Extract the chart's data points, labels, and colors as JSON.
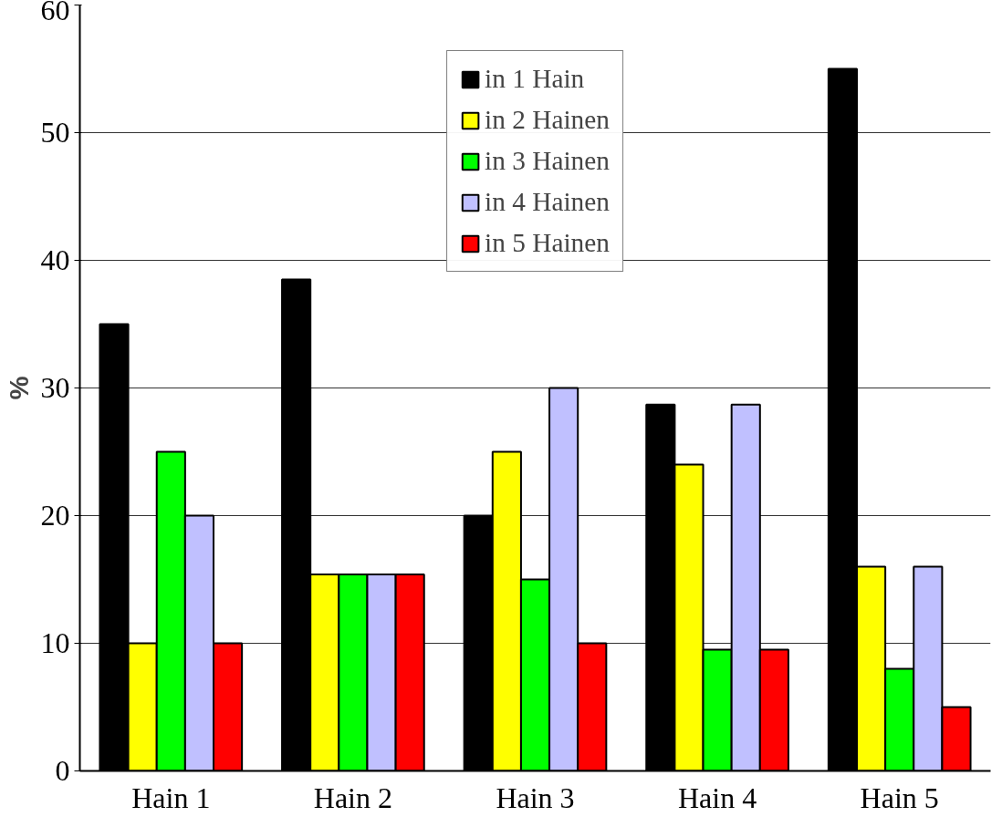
{
  "chart_data": {
    "type": "bar",
    "ylabel": "%",
    "categories": [
      "Hain 1",
      "Hain 2",
      "Hain 3",
      "Hain 4",
      "Hain 5"
    ],
    "series": [
      {
        "name": "in 1 Hain",
        "color": "#000000",
        "values": [
          35,
          38.5,
          20,
          28.7,
          55
        ]
      },
      {
        "name": "in 2 Hainen",
        "color": "#ffff00",
        "values": [
          10,
          15.4,
          25,
          24,
          16
        ]
      },
      {
        "name": "in 3 Hainen",
        "color": "#00ff00",
        "values": [
          25,
          15.4,
          15,
          9.5,
          8
        ]
      },
      {
        "name": "in 4 Hainen",
        "color": "#c0c0ff",
        "values": [
          20,
          15.4,
          30,
          28.7,
          16
        ]
      },
      {
        "name": "in 5 Hainen",
        "color": "#ff0000",
        "values": [
          10,
          15.4,
          10,
          9.5,
          5
        ]
      }
    ],
    "ylim": [
      0,
      60
    ],
    "yticks": [
      0,
      10,
      20,
      30,
      40,
      50,
      60
    ],
    "grid": "y",
    "legend": "top"
  }
}
